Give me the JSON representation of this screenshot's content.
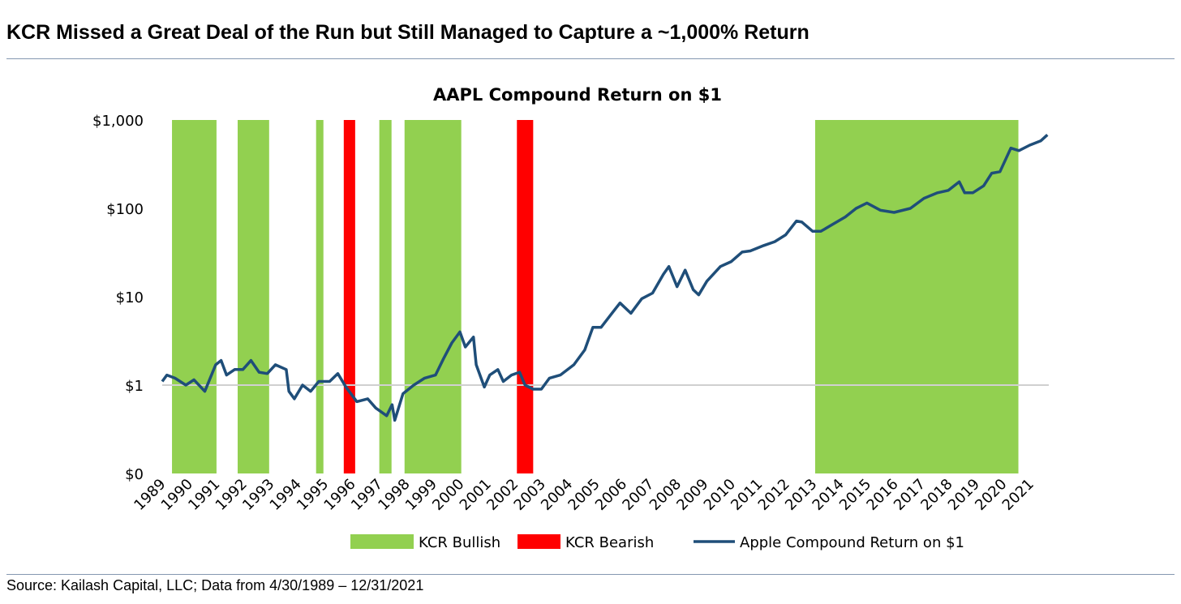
{
  "header": {
    "title": "KCR Missed a Great Deal of the Run but Still Managed to Capture a ~1,000% Return"
  },
  "footer": {
    "source": "Source: Kailash Capital, LLC; Data from 4/30/1989 – 12/31/2021"
  },
  "chart_data": {
    "type": "line",
    "title": "AAPL Compound Return on $1",
    "xlabel": "",
    "ylabel": "",
    "y_scale": "log",
    "ylim": [
      0.1,
      1000
    ],
    "xlim": [
      1989.33,
      2022.0
    ],
    "y_ticks": [
      {
        "value": 1000,
        "label": "$1,000"
      },
      {
        "value": 100,
        "label": "$100"
      },
      {
        "value": 10,
        "label": "$10"
      },
      {
        "value": 1,
        "label": "$1"
      },
      {
        "value": 0.1,
        "label": "$0"
      }
    ],
    "x_tick_labels": [
      "1989",
      "1990",
      "1991",
      "1992",
      "1993",
      "1994",
      "1995",
      "1996",
      "1997",
      "1998",
      "1999",
      "2000",
      "2001",
      "2002",
      "2003",
      "2004",
      "2005",
      "2006",
      "2007",
      "2008",
      "2009",
      "2010",
      "2011",
      "2012",
      "2013",
      "2014",
      "2015",
      "2016",
      "2017",
      "2018",
      "2019",
      "2020",
      "2021"
    ],
    "gridline_at": 1,
    "legend": {
      "placement": "bottom",
      "entries": [
        {
          "label": "KCR Bullish",
          "color": "#92d050"
        },
        {
          "label": "KCR Bearish",
          "color": "#ff0000"
        },
        {
          "label": "Apple Compound Return on $1",
          "color": "#1f4e79"
        }
      ]
    },
    "regimes": [
      {
        "type": "bullish",
        "start": 1989.69,
        "end": 1991.33
      },
      {
        "type": "bullish",
        "start": 1992.11,
        "end": 1993.27
      },
      {
        "type": "bullish",
        "start": 1995.0,
        "end": 1995.27
      },
      {
        "type": "bearish",
        "start": 1996.02,
        "end": 1996.44
      },
      {
        "type": "bullish",
        "start": 1997.33,
        "end": 1997.78
      },
      {
        "type": "bullish",
        "start": 1998.26,
        "end": 2000.35
      },
      {
        "type": "bearish",
        "start": 2002.4,
        "end": 2003.0
      },
      {
        "type": "bullish",
        "start": 2013.39,
        "end": 2020.88
      }
    ],
    "series": [
      {
        "name": "Apple Compound Return on $1",
        "color": "#1f4e79",
        "x": [
          1989.33,
          1989.5,
          1989.8,
          1990.2,
          1990.5,
          1990.9,
          1991.3,
          1991.5,
          1991.7,
          1992.0,
          1992.3,
          1992.6,
          1992.9,
          1993.2,
          1993.5,
          1993.9,
          1994.0,
          1994.2,
          1994.5,
          1994.8,
          1995.1,
          1995.5,
          1995.8,
          1996.1,
          1996.5,
          1996.9,
          1997.2,
          1997.6,
          1997.8,
          1997.9,
          1998.2,
          1998.6,
          1999.0,
          1999.4,
          1999.7,
          2000.0,
          2000.3,
          2000.5,
          2000.8,
          2000.9,
          2001.2,
          2001.4,
          2001.7,
          2001.9,
          2002.2,
          2002.5,
          2002.7,
          2003.0,
          2003.3,
          2003.6,
          2004.0,
          2004.5,
          2004.9,
          2005.2,
          2005.5,
          2005.9,
          2006.2,
          2006.6,
          2007.0,
          2007.4,
          2007.8,
          2008.0,
          2008.3,
          2008.6,
          2008.9,
          2009.1,
          2009.4,
          2009.9,
          2010.3,
          2010.7,
          2011.0,
          2011.5,
          2011.9,
          2012.3,
          2012.7,
          2012.9,
          2013.3,
          2013.6,
          2014.0,
          2014.5,
          2014.9,
          2015.3,
          2015.8,
          2016.3,
          2016.9,
          2017.4,
          2017.9,
          2018.3,
          2018.7,
          2018.9,
          2019.2,
          2019.6,
          2019.9,
          2020.2,
          2020.6,
          2020.9,
          2021.3,
          2021.7,
          2021.95
        ],
        "values": [
          1.1,
          1.3,
          1.2,
          1.0,
          1.15,
          0.85,
          1.7,
          1.9,
          1.3,
          1.5,
          1.5,
          1.9,
          1.4,
          1.35,
          1.7,
          1.5,
          0.85,
          0.7,
          1.0,
          0.85,
          1.1,
          1.1,
          1.35,
          0.95,
          0.65,
          0.7,
          0.55,
          0.45,
          0.6,
          0.4,
          0.8,
          1.0,
          1.2,
          1.3,
          2.0,
          3.0,
          4.0,
          2.7,
          3.5,
          1.7,
          0.95,
          1.3,
          1.5,
          1.1,
          1.3,
          1.4,
          1.0,
          0.9,
          0.9,
          1.2,
          1.3,
          1.7,
          2.5,
          4.5,
          4.5,
          6.5,
          8.5,
          6.5,
          9.5,
          11,
          18,
          22,
          13,
          20,
          12,
          10.5,
          15,
          22,
          25,
          32,
          33,
          38,
          42,
          50,
          72,
          70,
          55,
          55,
          65,
          80,
          100,
          115,
          95,
          90,
          100,
          130,
          150,
          160,
          200,
          150,
          150,
          180,
          250,
          260,
          480,
          450,
          520,
          580,
          680
        ]
      }
    ]
  }
}
